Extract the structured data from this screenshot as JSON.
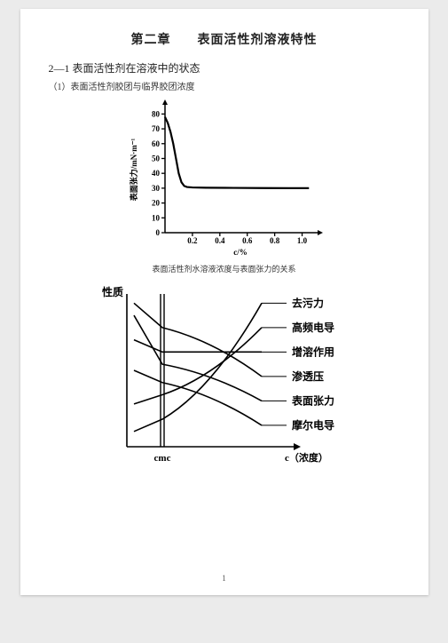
{
  "page_number": "1",
  "chapter_title": "第二章　　表面活性剂溶液特性",
  "section_title": "2—1 表面活性剂在溶液中的状态",
  "subsection_title": "（1）表面活性剂胶团与临界胶团浓度",
  "chart1": {
    "type": "line",
    "xlabel": "c/%",
    "ylabel": "表面张力/mN·m⁻¹",
    "xlim": [
      0,
      1.1
    ],
    "ylim": [
      0,
      85
    ],
    "xticks": [
      0.2,
      0.4,
      0.6,
      0.8,
      1.0
    ],
    "yticks": [
      0,
      10,
      20,
      30,
      40,
      50,
      60,
      70,
      80
    ],
    "data": [
      [
        0.0,
        78
      ],
      [
        0.02,
        74
      ],
      [
        0.04,
        68
      ],
      [
        0.06,
        60
      ],
      [
        0.08,
        50
      ],
      [
        0.1,
        40
      ],
      [
        0.12,
        34
      ],
      [
        0.14,
        31.5
      ],
      [
        0.16,
        30.8
      ],
      [
        0.2,
        30.5
      ],
      [
        0.3,
        30.3
      ],
      [
        0.5,
        30.2
      ],
      [
        0.7,
        30.1
      ],
      [
        0.9,
        30.0
      ],
      [
        1.05,
        30.0
      ]
    ],
    "line_color": "#000000",
    "line_width": 2.2,
    "tick_fontsize": 9,
    "axis_color": "#000000",
    "background": "#ffffff"
  },
  "caption1": "表面活性剂水溶液浓度与表面张力的关系",
  "chart2": {
    "type": "multi-line",
    "label_left": "性质",
    "label_bottom_left": "cmc",
    "label_bottom_right": "c（浓度）",
    "cmc_x": 0.25,
    "axis_color": "#000000",
    "line_color": "#000000",
    "line_width": 1.6,
    "label_fontsize": 12,
    "curves": [
      {
        "name": "去污力",
        "label": "去污力",
        "p0": [
          0.05,
          0.9
        ],
        "cmc_y": 0.82,
        "p1": [
          0.95,
          0.06
        ]
      },
      {
        "name": "高频电导",
        "label": "高频电导",
        "p0": [
          0.05,
          0.72
        ],
        "cmc_y": 0.66,
        "p1": [
          0.95,
          0.22
        ]
      },
      {
        "name": "增溶作用",
        "label": "增溶作用",
        "p0": [
          0.05,
          0.3
        ],
        "cmc_y": 0.38,
        "p1": [
          0.95,
          0.38
        ]
      },
      {
        "name": "渗透压",
        "label": "渗透压",
        "p0": [
          0.05,
          0.06
        ],
        "cmc_y": 0.22,
        "p1": [
          0.95,
          0.54
        ]
      },
      {
        "name": "表面张力",
        "label": "表面张力",
        "p0": [
          0.05,
          0.14
        ],
        "cmc_y": 0.46,
        "p1": [
          0.95,
          0.7
        ]
      },
      {
        "name": "摩尔电导",
        "label": "摩尔电导",
        "p0": [
          0.05,
          0.5
        ],
        "cmc_y": 0.58,
        "p1": [
          0.95,
          0.86
        ]
      }
    ]
  }
}
